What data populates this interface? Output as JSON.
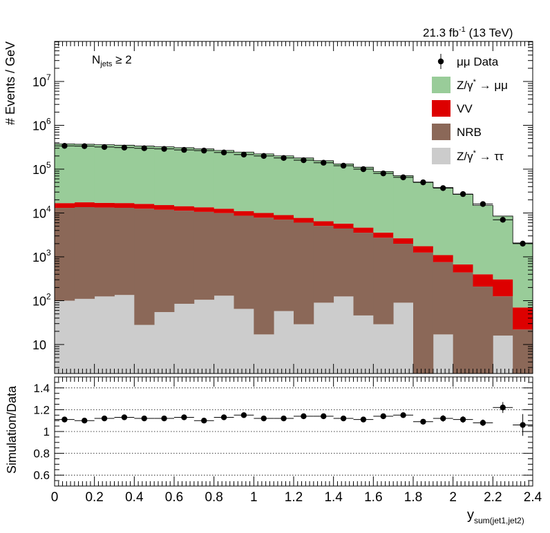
{
  "chart_data": [
    {
      "type": "area",
      "subtype": "stacked-histogram-log",
      "luminosity_label": "21.3 fb",
      "luminosity_exponent": "-1",
      "energy_label": "(13 TeV)",
      "selection_label_main": "N",
      "selection_label_sub": "jets",
      "selection_label_cut": "≥ 2",
      "ylabel": "# Events / GeV",
      "yscale": "log",
      "ylim": [
        3,
        100000000
      ],
      "ytick_labels": [
        "10",
        "10",
        "10",
        "10",
        "10",
        "10",
        "10"
      ],
      "ytick_exponents": [
        "",
        "2",
        "3",
        "4",
        "5",
        "6",
        "7"
      ],
      "bin_edges": [
        0,
        0.1,
        0.2,
        0.3,
        0.4,
        0.5,
        0.6,
        0.7,
        0.8,
        0.9,
        1.0,
        1.1,
        1.2,
        1.3,
        1.4,
        1.5,
        1.6,
        1.7,
        1.8,
        1.9,
        2.0,
        2.1,
        2.2,
        2.3,
        2.4
      ],
      "stack": [
        {
          "name": "Z/γ* → ττ",
          "color": "#cccccc",
          "values": [
            100,
            110,
            125,
            135,
            28,
            55,
            85,
            105,
            130,
            65,
            17,
            58,
            29,
            90,
            125,
            46,
            29,
            90,
            0,
            17,
            0,
            0,
            16,
            0
          ]
        },
        {
          "name": "NRB",
          "color": "#8b6858",
          "values": [
            13000,
            13500,
            13200,
            13000,
            12500,
            11800,
            11200,
            10500,
            9800,
            8600,
            7800,
            7000,
            6000,
            5000,
            4300,
            3500,
            2700,
            1900,
            1250,
            740,
            440,
            210,
            110,
            22
          ]
        },
        {
          "name": "VV",
          "color": "#dd0000",
          "values": [
            3700,
            3900,
            3700,
            3700,
            3600,
            3300,
            3000,
            2900,
            2600,
            2400,
            2200,
            1900,
            1700,
            1400,
            1300,
            1100,
            840,
            660,
            500,
            340,
            230,
            190,
            180,
            48
          ]
        },
        {
          "name": "Z/γ* → μμ",
          "color": "#99cc99",
          "values": [
            361000,
            352000,
            344000,
            335000,
            320000,
            308000,
            294000,
            276000,
            255000,
            234000,
            213000,
            192000,
            172000,
            149000,
            126000,
            106000,
            85000,
            68000,
            49000,
            37000,
            26000,
            14500,
            8200,
            2000
          ]
        }
      ],
      "data": {
        "name": "μμ Data",
        "x": [
          0.05,
          0.15,
          0.25,
          0.35,
          0.45,
          0.55,
          0.65,
          0.75,
          0.85,
          0.95,
          1.05,
          1.15,
          1.25,
          1.35,
          1.45,
          1.55,
          1.65,
          1.75,
          1.85,
          1.95,
          2.05,
          2.15,
          2.25,
          2.35
        ],
        "y": [
          340000,
          335000,
          320000,
          310000,
          300000,
          290000,
          275000,
          265000,
          240000,
          215000,
          200000,
          180000,
          160000,
          140000,
          120000,
          100000,
          80000,
          65000,
          50000,
          37000,
          27000,
          16000,
          7000,
          2000
        ]
      },
      "legend_entries": [
        "μμ Data",
        "Z/γ",
        "VV",
        "NRB",
        "Z/γ"
      ],
      "legend_suffixes": [
        "",
        "→ μμ",
        "",
        "",
        "→ ττ"
      ],
      "legend_superscripts": [
        "",
        "*",
        "",
        "",
        "*"
      ],
      "legend_placement": "top-right",
      "grid": false
    },
    {
      "type": "scatter",
      "subtype": "ratio-panel",
      "ylabel": "Simulation/Data",
      "xlabel_main": "y",
      "xlabel_sub": "sum(jet1,jet2)",
      "xlim": [
        0,
        2.4
      ],
      "ylim": [
        0.5,
        1.5
      ],
      "xtick_labels": [
        "0",
        "0.2",
        "0.4",
        "0.6",
        "0.8",
        "1",
        "1.2",
        "1.4",
        "1.6",
        "1.8",
        "2",
        "2.2",
        "2.4"
      ],
      "ytick_labels": [
        "0.6",
        "0.8",
        "1",
        "1.2",
        "1.4"
      ],
      "grid_lines_y": [
        0.6,
        0.8,
        1.0,
        1.2,
        1.4
      ],
      "x": [
        0.05,
        0.15,
        0.25,
        0.35,
        0.45,
        0.55,
        0.65,
        0.75,
        0.85,
        0.95,
        1.05,
        1.15,
        1.25,
        1.35,
        1.45,
        1.55,
        1.65,
        1.75,
        1.85,
        1.95,
        2.05,
        2.15,
        2.25,
        2.35
      ],
      "y": [
        1.11,
        1.1,
        1.12,
        1.13,
        1.12,
        1.12,
        1.13,
        1.1,
        1.13,
        1.15,
        1.12,
        1.12,
        1.14,
        1.14,
        1.12,
        1.11,
        1.14,
        1.15,
        1.09,
        1.12,
        1.11,
        1.08,
        1.22,
        1.06
      ],
      "yerr": [
        0.01,
        0.01,
        0.01,
        0.01,
        0.01,
        0.01,
        0.01,
        0.01,
        0.01,
        0.01,
        0.01,
        0.01,
        0.01,
        0.01,
        0.01,
        0.01,
        0.01,
        0.01,
        0.02,
        0.03,
        0.03,
        0.03,
        0.05,
        0.1
      ]
    }
  ]
}
